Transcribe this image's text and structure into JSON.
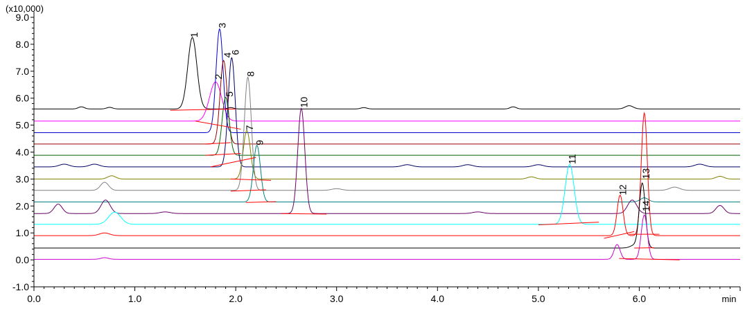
{
  "chart_data": {
    "type": "line",
    "title": "",
    "xlabel": "min",
    "y_multiplier_label": "(x10,000)",
    "xlim": [
      0.0,
      7.0
    ],
    "ylim": [
      -1.0,
      9.0
    ],
    "x_ticks": [
      "0.0",
      "1.0",
      "2.0",
      "3.0",
      "4.0",
      "5.0",
      "6.0"
    ],
    "x_tick_values": [
      0,
      1,
      2,
      3,
      4,
      5,
      6
    ],
    "y_ticks": [
      "-1.0",
      "0.0",
      "1.0",
      "2.0",
      "3.0",
      "4.0",
      "5.0",
      "6.0",
      "7.0",
      "8.0",
      "9.0"
    ],
    "y_tick_values": [
      -1,
      0,
      1,
      2,
      3,
      4,
      5,
      6,
      7,
      8,
      9
    ],
    "grid": false,
    "series": [
      {
        "color": "#000000",
        "baseline": 5.6,
        "peaks": [
          [
            1.57,
            2.65,
            0.045
          ],
          [
            0.47,
            0.08,
            0.03
          ],
          [
            0.75,
            0.06,
            0.03
          ],
          [
            1.95,
            0.05,
            0.03
          ],
          [
            3.27,
            0.05,
            0.03
          ],
          [
            4.75,
            0.08,
            0.03
          ],
          [
            5.9,
            0.12,
            0.04
          ]
        ]
      },
      {
        "color": "#ff00ff",
        "baseline": 5.15,
        "peaks": [
          [
            1.8,
            1.45,
            0.06
          ]
        ]
      },
      {
        "color": "#0000cc",
        "baseline": 4.72,
        "peaks": [
          [
            1.84,
            3.85,
            0.035
          ]
        ]
      },
      {
        "color": "#990000",
        "baseline": 4.3,
        "peaks": [
          [
            1.88,
            3.1,
            0.035
          ]
        ]
      },
      {
        "color": "#006600",
        "baseline": 3.88,
        "peaks": [
          [
            1.9,
            2.15,
            0.035
          ]
        ]
      },
      {
        "color": "#000066",
        "baseline": 3.45,
        "peaks": [
          [
            1.96,
            4.05,
            0.035
          ],
          [
            0.3,
            0.1,
            0.05
          ],
          [
            0.6,
            0.1,
            0.05
          ],
          [
            3.7,
            0.08,
            0.05
          ],
          [
            4.3,
            0.08,
            0.05
          ],
          [
            5.0,
            0.08,
            0.05
          ],
          [
            6.6,
            0.1,
            0.05
          ]
        ]
      },
      {
        "color": "#808000",
        "baseline": 3.0,
        "peaks": [
          [
            2.11,
            1.8,
            0.035
          ],
          [
            0.77,
            0.12,
            0.04
          ],
          [
            4.93,
            0.08,
            0.04
          ],
          [
            6.8,
            0.1,
            0.04
          ]
        ]
      },
      {
        "color": "#808080",
        "baseline": 2.58,
        "peaks": [
          [
            2.12,
            4.2,
            0.035
          ],
          [
            0.7,
            0.3,
            0.04
          ],
          [
            3.0,
            0.06,
            0.05
          ],
          [
            6.35,
            0.12,
            0.05
          ]
        ]
      },
      {
        "color": "#008080",
        "baseline": 2.15,
        "peaks": [
          [
            2.21,
            2.1,
            0.035
          ],
          [
            6.05,
            0.15,
            0.04
          ]
        ]
      },
      {
        "color": "#660066",
        "baseline": 1.72,
        "peaks": [
          [
            2.65,
            3.9,
            0.035
          ],
          [
            0.24,
            0.35,
            0.04
          ],
          [
            0.71,
            0.5,
            0.045
          ],
          [
            5.93,
            0.5,
            0.045
          ],
          [
            6.8,
            0.3,
            0.04
          ],
          [
            1.3,
            0.06,
            0.05
          ],
          [
            4.4,
            0.06,
            0.05
          ]
        ]
      },
      {
        "color": "#00ffff",
        "baseline": 1.32,
        "peaks": [
          [
            5.31,
            2.22,
            0.045
          ],
          [
            0.8,
            0.45,
            0.06
          ]
        ]
      },
      {
        "color": "#ff0000",
        "baseline": 0.9,
        "peaks": [
          [
            6.05,
            4.55,
            0.03
          ],
          [
            5.81,
            1.5,
            0.03
          ],
          [
            0.7,
            0.1,
            0.05
          ]
        ]
      },
      {
        "color": "#000000",
        "baseline": 0.44,
        "peaks": [
          [
            6.03,
            2.4,
            0.03
          ],
          [
            5.95,
            0.1,
            0.04
          ]
        ]
      },
      {
        "color": "#cc00cc",
        "baseline": 0.02,
        "peaks": [
          [
            6.05,
            1.65,
            0.03
          ],
          [
            5.78,
            0.55,
            0.03
          ],
          [
            0.7,
            0.06,
            0.04
          ]
        ]
      }
    ],
    "integration_lines": [
      [
        [
          1.35,
          5.55
        ],
        [
          2.0,
          5.6
        ]
      ],
      [
        [
          1.6,
          5.15
        ],
        [
          2.05,
          4.85
        ]
      ],
      [
        [
          1.7,
          4.3
        ],
        [
          1.95,
          4.35
        ]
      ],
      [
        [
          1.7,
          3.88
        ],
        [
          2.05,
          3.95
        ]
      ],
      [
        [
          1.75,
          3.45
        ],
        [
          2.2,
          3.8
        ]
      ],
      [
        [
          1.95,
          3.0
        ],
        [
          2.35,
          2.95
        ]
      ],
      [
        [
          1.95,
          2.55
        ],
        [
          2.3,
          2.6
        ]
      ],
      [
        [
          2.1,
          2.13
        ],
        [
          2.4,
          2.16
        ]
      ],
      [
        [
          2.45,
          1.72
        ],
        [
          2.9,
          1.7
        ]
      ],
      [
        [
          5.0,
          1.3
        ],
        [
          5.6,
          1.4
        ]
      ],
      [
        [
          5.65,
          0.8
        ],
        [
          5.95,
          1.05
        ]
      ],
      [
        [
          5.9,
          0.95
        ],
        [
          6.2,
          0.95
        ]
      ],
      [
        [
          5.95,
          0.44
        ],
        [
          6.15,
          0.45
        ]
      ],
      [
        [
          5.8,
          0.05
        ],
        [
          6.4,
          0.0
        ]
      ]
    ],
    "annotations": [
      {
        "text": "1",
        "x": 1.62,
        "y": 8.25
      },
      {
        "text": "2",
        "x": 1.86,
        "y": 6.7
      },
      {
        "text": "3",
        "x": 1.9,
        "y": 8.6
      },
      {
        "text": "4",
        "x": 1.95,
        "y": 7.5
      },
      {
        "text": "5",
        "x": 1.97,
        "y": 6.05
      },
      {
        "text": "6",
        "x": 2.03,
        "y": 7.6
      },
      {
        "text": "7",
        "x": 2.17,
        "y": 4.8
      },
      {
        "text": "8",
        "x": 2.18,
        "y": 6.8
      },
      {
        "text": "9",
        "x": 2.27,
        "y": 4.25
      },
      {
        "text": "10",
        "x": 2.71,
        "y": 5.65
      },
      {
        "text": "11",
        "x": 5.37,
        "y": 3.55
      },
      {
        "text": "12",
        "x": 5.87,
        "y": 2.4
      },
      {
        "text": "13",
        "x": 6.1,
        "y": 3.0
      },
      {
        "text": "14",
        "x": 6.1,
        "y": 1.8
      }
    ],
    "integration_color": "#ff0000"
  }
}
